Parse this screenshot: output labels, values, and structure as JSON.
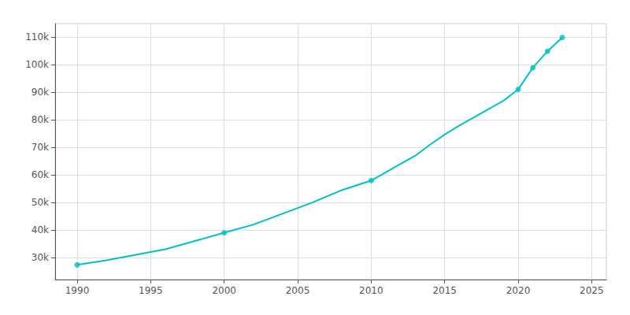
{
  "chart_data": {
    "type": "line",
    "xlim": [
      1988.5,
      2026
    ],
    "xticks": [
      1990,
      1995,
      2000,
      2005,
      2010,
      2015,
      2020,
      2025
    ],
    "ylim": [
      22000,
      115000
    ],
    "yticks": [
      {
        "value": 30000,
        "label": "30k"
      },
      {
        "value": 40000,
        "label": "40k"
      },
      {
        "value": 50000,
        "label": "50k"
      },
      {
        "value": 60000,
        "label": "60k"
      },
      {
        "value": 70000,
        "label": "70k"
      },
      {
        "value": 80000,
        "label": "80k"
      },
      {
        "value": 90000,
        "label": "90k"
      },
      {
        "value": 100000,
        "label": "100k"
      },
      {
        "value": 110000,
        "label": "110k"
      }
    ],
    "grid": true,
    "series": [
      {
        "type": "line",
        "color": "#00BFBF",
        "marker": "none",
        "x": [
          1990,
          1992,
          1994,
          1996,
          1998,
          2000,
          2002,
          2004,
          2006,
          2008,
          2010,
          2012,
          2013,
          2014,
          2015,
          2016,
          2017,
          2018,
          2019,
          2020,
          2021,
          2022,
          2023
        ],
        "values": [
          27334,
          29000,
          31000,
          33000,
          36000,
          39027,
          42000,
          46000,
          50000,
          54500,
          57978,
          64000,
          67000,
          71000,
          74700,
          78000,
          81000,
          84000,
          87000,
          91095,
          99000,
          105000,
          110000
        ]
      },
      {
        "type": "scatter",
        "color": "#00BFBF",
        "marker": "circle",
        "x": [
          1990,
          2000,
          2010,
          2020,
          2021,
          2022,
          2023
        ],
        "values": [
          27334,
          39027,
          57978,
          91095,
          99000,
          105000,
          110000
        ]
      }
    ]
  }
}
